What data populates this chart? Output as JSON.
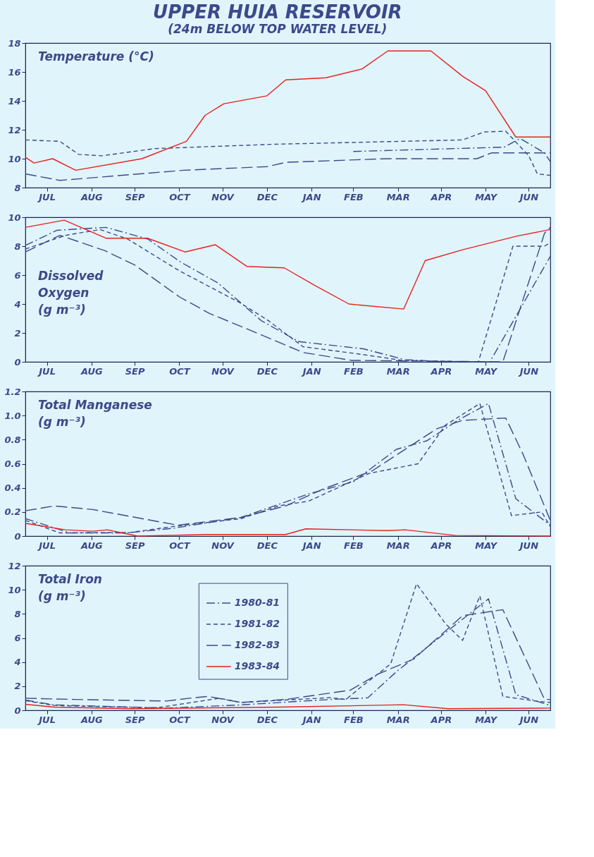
{
  "chart_data": [
    {
      "type": "line",
      "title": "UPPER HUIA RESERVOIR",
      "subtitle": "(24m BELOW TOP WATER LEVEL)",
      "ylabel": "Temperature  (°C)",
      "xlim": [
        "1983-07-01",
        "1984-06-30"
      ],
      "xticks": [
        {
          "value": "1983-07-16",
          "label": "JUL"
        },
        {
          "value": "1983-08-16",
          "label": "AUG"
        },
        {
          "value": "1983-09-15",
          "label": "SEP"
        },
        {
          "value": "1983-10-16",
          "label": "OCT"
        },
        {
          "value": "1983-11-15",
          "label": "NOV"
        },
        {
          "value": "1983-12-16",
          "label": "DEC"
        },
        {
          "value": "1984-01-16",
          "label": "JAN"
        },
        {
          "value": "1984-02-14",
          "label": "FEB"
        },
        {
          "value": "1984-03-16",
          "label": "MAR"
        },
        {
          "value": "1984-04-15",
          "label": "APR"
        },
        {
          "value": "1984-05-16",
          "label": "MAY"
        },
        {
          "value": "1984-06-15",
          "label": "JUN"
        }
      ],
      "ylim": [
        8,
        18
      ],
      "yticks": [
        8,
        10,
        12,
        14,
        16,
        18
      ],
      "grid": false,
      "legend": false,
      "series": [
        {
          "color": "#3a4a8a",
          "line_style": "dashed",
          "x": [
            "1984-02-14",
            "1984-05-29",
            "1984-06-09",
            "1984-06-26",
            "1984-06-30"
          ],
          "values": [
            10.5,
            10.8,
            11.4,
            10.4,
            9.8
          ]
        },
        {
          "color": "#3a4a8a",
          "line_style": "dashed",
          "x": [
            "1983-07-01",
            "1983-07-25",
            "1983-08-07",
            "1983-08-23",
            "1983-09-29",
            "1983-12-21",
            "1984-04-30",
            "1984-05-15",
            "1984-05-30",
            "1984-06-15",
            "1984-06-21",
            "1984-06-30"
          ],
          "values": [
            11.3,
            11.2,
            10.3,
            10.2,
            10.7,
            11.0,
            11.3,
            11.85,
            11.9,
            10.2,
            8.95,
            8.85
          ]
        },
        {
          "color": "#3a4a8a",
          "line_style": "dashed",
          "x": [
            "1983-07-01",
            "1983-07-25",
            "1983-10-19",
            "1983-12-16",
            "1983-12-29",
            "1984-03-08",
            "1984-05-10",
            "1984-05-20",
            "1984-06-21",
            "1984-06-30"
          ],
          "values": [
            8.95,
            8.5,
            9.2,
            9.45,
            9.75,
            10.0,
            10.0,
            10.4,
            10.4,
            10.4
          ]
        },
        {
          "color": "#e8201e",
          "line_style": "solid",
          "x": [
            "1983-07-01",
            "1983-07-07",
            "1983-07-20",
            "1983-08-05",
            "1983-09-20",
            "1983-10-21",
            "1983-11-03",
            "1983-11-16",
            "1983-12-16",
            "1983-12-29",
            "1984-01-26",
            "1984-02-20",
            "1984-03-09",
            "1984-04-08",
            "1984-04-30",
            "1984-05-16",
            "1984-06-06",
            "1984-06-30"
          ],
          "values": [
            10.1,
            9.7,
            10.0,
            9.2,
            10.0,
            11.2,
            13.0,
            13.8,
            14.35,
            15.45,
            15.6,
            16.2,
            17.45,
            17.45,
            15.7,
            14.7,
            11.5,
            11.5
          ]
        }
      ]
    },
    {
      "type": "line",
      "ylabel": "Dissolved\nOxygen\n(g m⁻³)",
      "xlim": [
        "1983-07-01",
        "1984-06-30"
      ],
      "xticks": [
        {
          "value": "1983-07-16",
          "label": "JUL"
        },
        {
          "value": "1983-08-16",
          "label": "AUG"
        },
        {
          "value": "1983-09-15",
          "label": "SEP"
        },
        {
          "value": "1983-10-16",
          "label": "OCT"
        },
        {
          "value": "1983-11-15",
          "label": "NOV"
        },
        {
          "value": "1983-12-16",
          "label": "DEC"
        },
        {
          "value": "1984-01-16",
          "label": "JAN"
        },
        {
          "value": "1984-02-14",
          "label": "FEB"
        },
        {
          "value": "1984-03-16",
          "label": "MAR"
        },
        {
          "value": "1984-04-15",
          "label": "APR"
        },
        {
          "value": "1984-05-16",
          "label": "MAY"
        },
        {
          "value": "1984-06-15",
          "label": "JUN"
        }
      ],
      "ylim": [
        0,
        10
      ],
      "yticks": [
        0,
        2,
        4,
        6,
        8,
        10
      ],
      "grid": false,
      "legend": false,
      "series": [
        {
          "color": "#3a4a8a",
          "line_style": "dashed",
          "x": [
            "1983-07-01",
            "1983-07-23",
            "1983-08-26",
            "1983-09-24",
            "1983-10-17",
            "1983-11-12",
            "1983-12-12",
            "1984-01-07",
            "1984-02-21",
            "1984-03-21",
            "1984-04-20",
            "1984-05-19",
            "1984-06-30"
          ],
          "values": [
            8.05,
            9.1,
            9.3,
            8.5,
            6.9,
            5.45,
            2.85,
            1.4,
            0.9,
            0.15,
            0,
            0,
            7.3
          ]
        },
        {
          "color": "#3a4a8a",
          "line_style": "dashed",
          "x": [
            "1983-07-01",
            "1983-07-29",
            "1983-08-22",
            "1983-09-10",
            "1983-10-16",
            "1983-11-27",
            "1983-12-17",
            "1984-01-10",
            "1984-02-21",
            "1984-03-19",
            "1984-05-11",
            "1984-06-04",
            "1984-06-26",
            "1984-06-30"
          ],
          "values": [
            7.8,
            8.75,
            9.15,
            8.5,
            6.3,
            4.1,
            2.85,
            1.05,
            0.5,
            0.1,
            0,
            8.0,
            8.0,
            8.25
          ]
        },
        {
          "color": "#3a4a8a",
          "line_style": "dashed",
          "x": [
            "1983-07-01",
            "1983-07-25",
            "1983-08-25",
            "1983-09-15",
            "1983-10-16",
            "1983-11-06",
            "1983-12-04",
            "1984-01-10",
            "1984-02-13",
            "1984-05-28",
            "1984-06-26",
            "1984-06-30"
          ],
          "values": [
            7.6,
            8.75,
            7.7,
            6.7,
            4.5,
            3.35,
            2.2,
            0.65,
            0.1,
            0,
            8.9,
            9.3
          ]
        },
        {
          "color": "#e8201e",
          "line_style": "solid",
          "x": [
            "1983-07-01",
            "1983-07-28",
            "1983-08-26",
            "1983-09-24",
            "1983-10-20",
            "1983-11-10",
            "1983-12-02",
            "1983-12-28",
            "1984-01-18",
            "1984-02-11",
            "1984-03-20",
            "1984-04-04",
            "1984-04-30",
            "1984-06-07",
            "1984-06-30"
          ],
          "values": [
            9.3,
            9.8,
            8.55,
            8.55,
            7.6,
            8.1,
            6.6,
            6.5,
            5.3,
            4.0,
            3.65,
            7.0,
            7.75,
            8.7,
            9.15
          ]
        }
      ]
    },
    {
      "type": "line",
      "ylabel": "Total Manganese\n(g m⁻³)",
      "xlim": [
        "1983-07-01",
        "1984-06-30"
      ],
      "xticks": [
        {
          "value": "1983-07-16",
          "label": "JUL"
        },
        {
          "value": "1983-08-16",
          "label": "AUG"
        },
        {
          "value": "1983-09-15",
          "label": "SEP"
        },
        {
          "value": "1983-10-16",
          "label": "OCT"
        },
        {
          "value": "1983-11-15",
          "label": "NOV"
        },
        {
          "value": "1983-12-16",
          "label": "DEC"
        },
        {
          "value": "1984-01-16",
          "label": "JAN"
        },
        {
          "value": "1984-02-14",
          "label": "FEB"
        },
        {
          "value": "1984-03-16",
          "label": "MAR"
        },
        {
          "value": "1984-04-15",
          "label": "APR"
        },
        {
          "value": "1984-05-16",
          "label": "MAY"
        },
        {
          "value": "1984-06-15",
          "label": "JUN"
        }
      ],
      "ylim": [
        0,
        1.2
      ],
      "yticks": [
        0,
        0.2,
        0.4,
        0.6,
        0.8,
        {
          "value": 1,
          "label": "1.0"
        },
        1.2
      ],
      "grid": false,
      "legend": false,
      "series": [
        {
          "color": "#3a4a8a",
          "line_style": "dashed",
          "x": [
            "1983-07-01",
            "1983-08-01",
            "1983-09-09",
            "1983-10-12",
            "1983-11-28",
            "1984-01-14",
            "1984-02-14",
            "1984-03-15",
            "1984-04-05",
            "1984-04-28",
            "1984-05-18",
            "1984-06-06",
            "1984-06-30"
          ],
          "values": [
            0.145,
            0.026,
            0.026,
            0.065,
            0.155,
            0.35,
            0.45,
            0.72,
            0.79,
            0.97,
            1.1,
            0.31,
            0.09
          ]
        },
        {
          "color": "#3a4a8a",
          "line_style": "dashed",
          "x": [
            "1983-07-01",
            "1983-07-25",
            "1983-09-12",
            "1983-10-12",
            "1983-11-28",
            "1983-12-24",
            "1984-01-14",
            "1984-02-25",
            "1984-03-30",
            "1984-04-18",
            "1984-05-12",
            "1984-06-03",
            "1984-06-24",
            "1984-06-30"
          ],
          "values": [
            0.13,
            0.026,
            0.03,
            0.08,
            0.145,
            0.25,
            0.29,
            0.52,
            0.6,
            0.92,
            1.1,
            0.17,
            0.2,
            0.08
          ]
        },
        {
          "color": "#3a4a8a",
          "line_style": "dashed",
          "x": [
            "1983-07-01",
            "1983-07-21",
            "1983-08-17",
            "1983-10-15",
            "1983-11-28",
            "1983-12-29",
            "1984-01-24",
            "1984-02-27",
            "1984-04-12",
            "1984-04-30",
            "1984-05-30",
            "1984-06-11",
            "1984-06-30"
          ],
          "values": [
            0.21,
            0.25,
            0.22,
            0.09,
            0.155,
            0.25,
            0.39,
            0.54,
            0.89,
            0.96,
            0.98,
            0.68,
            0.13
          ]
        },
        {
          "color": "#e8201e",
          "line_style": "solid",
          "x": [
            "1983-07-01",
            "1983-07-29",
            "1983-08-17",
            "1983-08-27",
            "1983-09-17",
            "1983-11-03",
            "1983-12-29",
            "1984-01-12",
            "1984-03-09",
            "1984-03-21",
            "1984-04-25",
            "1984-06-30"
          ],
          "values": [
            0.105,
            0.052,
            0.04,
            0.052,
            0,
            0.013,
            0.013,
            0.06,
            0.045,
            0.052,
            0.005,
            0
          ]
        }
      ]
    },
    {
      "type": "line",
      "ylabel": "Total Iron\n(g m⁻³)",
      "xlim": [
        "1983-07-01",
        "1984-06-30"
      ],
      "xticks": [
        {
          "value": "1983-07-16",
          "label": "JUL"
        },
        {
          "value": "1983-08-16",
          "label": "AUG"
        },
        {
          "value": "1983-09-15",
          "label": "SEP"
        },
        {
          "value": "1983-10-16",
          "label": "OCT"
        },
        {
          "value": "1983-11-15",
          "label": "NOV"
        },
        {
          "value": "1983-12-16",
          "label": "DEC"
        },
        {
          "value": "1984-01-16",
          "label": "JAN"
        },
        {
          "value": "1984-02-14",
          "label": "FEB"
        },
        {
          "value": "1984-03-16",
          "label": "MAR"
        },
        {
          "value": "1984-04-15",
          "label": "APR"
        },
        {
          "value": "1984-05-16",
          "label": "MAY"
        },
        {
          "value": "1984-06-15",
          "label": "JUN"
        }
      ],
      "ylim": [
        0,
        12
      ],
      "yticks": [
        0,
        2,
        4,
        6,
        8,
        10,
        12
      ],
      "grid": false,
      "legend": "top",
      "series": [
        {
          "name": "1980-81",
          "color": "#3a4a8a",
          "line_style": "dashed",
          "x": [
            "1983-07-01",
            "1983-07-21",
            "1983-10-07",
            "1983-11-28",
            "1984-01-29",
            "1984-02-24",
            "1984-03-15",
            "1984-04-15",
            "1984-05-18",
            "1984-06-06",
            "1984-06-30"
          ],
          "values": [
            0.85,
            0.45,
            0.18,
            0.45,
            0.9,
            1.03,
            3.2,
            6.15,
            9.25,
            1.3,
            0.4
          ]
        },
        {
          "name": "1981-82",
          "color": "#3a4a8a",
          "line_style": "dashed",
          "x": [
            "1983-07-01",
            "1983-07-21",
            "1983-09-30",
            "1983-11-13",
            "1983-11-28",
            "1984-01-29",
            "1984-02-09",
            "1984-02-19",
            "1984-03-02",
            "1984-03-11",
            "1984-03-29",
            "1984-04-18",
            "1984-04-30",
            "1984-05-12",
            "1984-05-28",
            "1984-06-21",
            "1984-06-30"
          ],
          "values": [
            0.8,
            0.4,
            0.2,
            1.0,
            0.65,
            1.05,
            0.9,
            1.9,
            3.0,
            3.85,
            10.5,
            7.2,
            5.8,
            9.5,
            1.15,
            0.75,
            0.65
          ]
        },
        {
          "name": "1982-83",
          "color": "#3a4a8a",
          "line_style": "dashed",
          "x": [
            "1983-07-01",
            "1983-08-04",
            "1983-10-07",
            "1983-10-23",
            "1983-11-05",
            "1983-11-28",
            "1983-12-29",
            "1984-02-12",
            "1984-03-02",
            "1984-03-27",
            "1984-04-30",
            "1984-05-28",
            "1984-06-26",
            "1984-06-30"
          ],
          "values": [
            1.0,
            0.9,
            0.77,
            1.0,
            1.15,
            0.65,
            0.9,
            1.67,
            3.0,
            4.25,
            7.85,
            8.35,
            0.9,
            0.9
          ]
        },
        {
          "name": "1983-84",
          "color": "#e8201e",
          "line_style": "solid",
          "x": [
            "1983-07-01",
            "1983-07-21",
            "1983-09-12",
            "1983-12-24",
            "1984-03-20",
            "1984-04-20",
            "1984-06-30"
          ],
          "values": [
            0.5,
            0.26,
            0.13,
            0.26,
            0.46,
            0.13,
            0.18
          ]
        }
      ]
    }
  ]
}
